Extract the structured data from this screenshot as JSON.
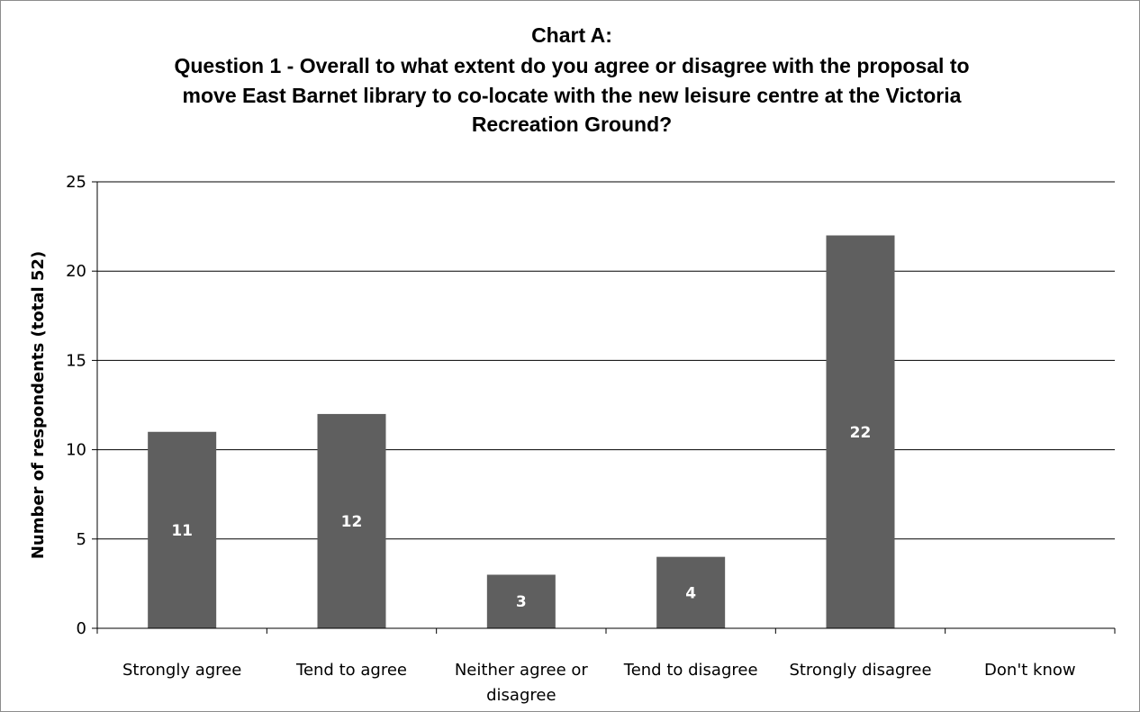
{
  "chart_data": {
    "type": "bar",
    "title_lines": [
      "Chart A:",
      "Question 1 - Overall to what extent do you agree or disagree with the proposal to",
      "move East Barnet library to co-locate with the new leisure centre at the Victoria",
      "Recreation Ground?"
    ],
    "ylabel": "Number of respondents (total 52)",
    "xlabel": "",
    "categories": [
      [
        "Strongly agree"
      ],
      [
        "Tend to agree"
      ],
      [
        "Neither agree or",
        "disagree"
      ],
      [
        "Tend to disagree"
      ],
      [
        "Strongly disagree"
      ],
      [
        "Don't know"
      ]
    ],
    "values": [
      11,
      12,
      3,
      4,
      22,
      0
    ],
    "data_labels": [
      "11",
      "12",
      "3",
      "4",
      "22",
      ""
    ],
    "ylim": [
      0,
      25
    ],
    "yticks": [
      0,
      5,
      10,
      15,
      20,
      25
    ],
    "ytick_labels": [
      "0",
      "5",
      "10",
      "15",
      "20",
      "25"
    ],
    "grid": true,
    "legend": "none",
    "bar_color": "#5f5f5f",
    "grid_color": "#000000"
  }
}
